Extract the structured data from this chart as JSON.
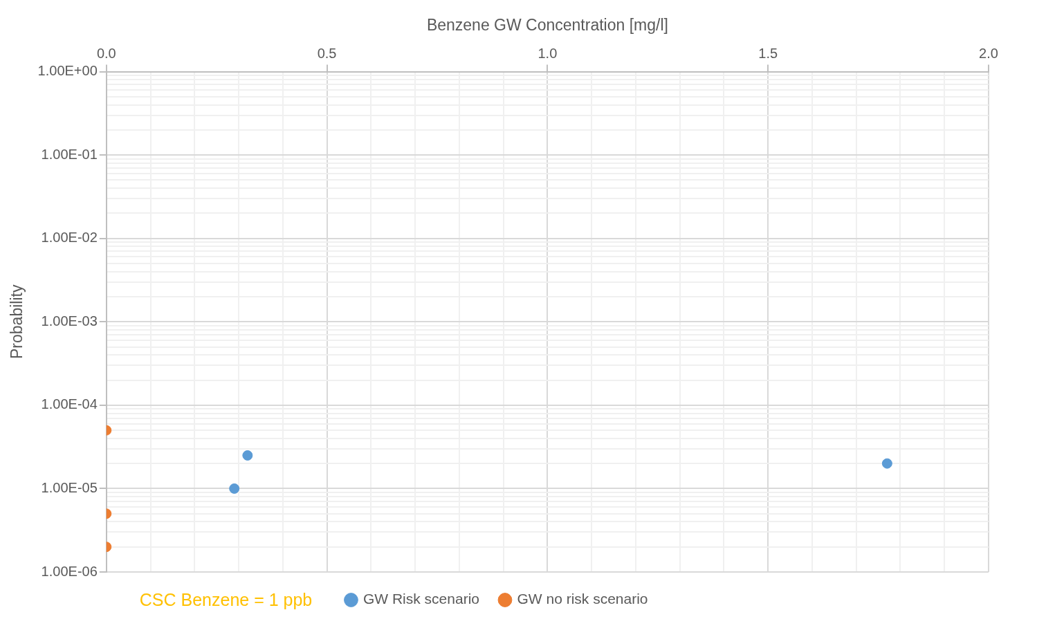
{
  "chart_data": {
    "type": "scatter",
    "xlabel": "Benzene GW Concentration [mg/l]",
    "ylabel": "Probability",
    "series": [
      {
        "name": "GW Risk scenario",
        "color": "#5b9bd5",
        "x": [
          0.29,
          0.32,
          1.77
        ],
        "values": [
          1e-05,
          2.5e-05,
          2e-05
        ]
      },
      {
        "name": "GW no risk scenario",
        "color": "#ed7d31",
        "x": [
          0,
          0,
          0
        ],
        "values": [
          5e-05,
          5e-06,
          2e-06
        ]
      }
    ],
    "xlim": [
      0,
      2
    ],
    "xticks": [
      {
        "value": 0,
        "label": "0.0"
      },
      {
        "value": 0.1,
        "label": null
      },
      {
        "value": 0.2,
        "label": null
      },
      {
        "value": 0.3,
        "label": null
      },
      {
        "value": 0.4,
        "label": null
      },
      {
        "value": 0.5,
        "label": "0.5"
      },
      {
        "value": 0.6,
        "label": null
      },
      {
        "value": 0.7,
        "label": null
      },
      {
        "value": 0.8,
        "label": null
      },
      {
        "value": 0.9,
        "label": null
      },
      {
        "value": 1,
        "label": "1.0"
      },
      {
        "value": 1.1,
        "label": null
      },
      {
        "value": 1.2,
        "label": null
      },
      {
        "value": 1.3,
        "label": null
      },
      {
        "value": 1.4,
        "label": null
      },
      {
        "value": 1.5,
        "label": "1.5"
      },
      {
        "value": 1.6,
        "label": null
      },
      {
        "value": 1.7,
        "label": null
      },
      {
        "value": 1.8,
        "label": null
      },
      {
        "value": 1.9,
        "label": null
      },
      {
        "value": 2,
        "label": "2.0"
      }
    ],
    "ylim": [
      1e-06,
      1
    ],
    "yticks": [
      {
        "value": 1e-06,
        "label": "1.00E-06"
      },
      {
        "value": 2e-06,
        "label": null
      },
      {
        "value": 3e-06,
        "label": null
      },
      {
        "value": 4e-06,
        "label": null
      },
      {
        "value": 5e-06,
        "label": null
      },
      {
        "value": 6e-06,
        "label": null
      },
      {
        "value": 7e-06,
        "label": null
      },
      {
        "value": 8e-06,
        "label": null
      },
      {
        "value": 9e-06,
        "label": null
      },
      {
        "value": 1e-05,
        "label": "1.00E-05"
      },
      {
        "value": 2e-05,
        "label": null
      },
      {
        "value": 3e-05,
        "label": null
      },
      {
        "value": 4e-05,
        "label": null
      },
      {
        "value": 5e-05,
        "label": null
      },
      {
        "value": 6e-05,
        "label": null
      },
      {
        "value": 7e-05,
        "label": null
      },
      {
        "value": 8e-05,
        "label": null
      },
      {
        "value": 9e-05,
        "label": null
      },
      {
        "value": 0.0001,
        "label": "1.00E-04"
      },
      {
        "value": 0.0002,
        "label": null
      },
      {
        "value": 0.0003,
        "label": null
      },
      {
        "value": 0.0004,
        "label": null
      },
      {
        "value": 0.0005,
        "label": null
      },
      {
        "value": 0.0006,
        "label": null
      },
      {
        "value": 0.0007,
        "label": null
      },
      {
        "value": 0.0008,
        "label": null
      },
      {
        "value": 0.0009,
        "label": null
      },
      {
        "value": 0.001,
        "label": "1.00E-03"
      },
      {
        "value": 0.002,
        "label": null
      },
      {
        "value": 0.003,
        "label": null
      },
      {
        "value": 0.004,
        "label": null
      },
      {
        "value": 0.005,
        "label": null
      },
      {
        "value": 0.006,
        "label": null
      },
      {
        "value": 0.007,
        "label": null
      },
      {
        "value": 0.008,
        "label": null
      },
      {
        "value": 0.009,
        "label": null
      },
      {
        "value": 0.01,
        "label": "1.00E-02"
      },
      {
        "value": 0.02,
        "label": null
      },
      {
        "value": 0.03,
        "label": null
      },
      {
        "value": 0.04,
        "label": null
      },
      {
        "value": 0.05,
        "label": null
      },
      {
        "value": 0.06,
        "label": null
      },
      {
        "value": 0.07,
        "label": null
      },
      {
        "value": 0.08,
        "label": null
      },
      {
        "value": 0.09,
        "label": null
      },
      {
        "value": 0.1,
        "label": "1.00E-01"
      },
      {
        "value": 0.2,
        "label": null
      },
      {
        "value": 0.3,
        "label": null
      },
      {
        "value": 0.4,
        "label": null
      },
      {
        "value": 0.5,
        "label": null
      },
      {
        "value": 0.6,
        "label": null
      },
      {
        "value": 0.7,
        "label": null
      },
      {
        "value": 0.8,
        "label": null
      },
      {
        "value": 0.9,
        "label": null
      },
      {
        "value": 1,
        "label": "1.00E+00"
      }
    ],
    "log": "y",
    "grid": true,
    "legend": "bottom",
    "marker": "circle",
    "annotations": [
      "CSC Benzene = 1 ppb"
    ]
  }
}
